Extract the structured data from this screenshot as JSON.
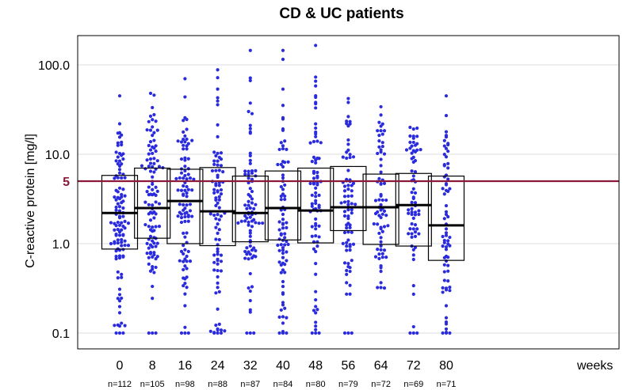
{
  "chart_data": {
    "type": "box",
    "title": "CD & UC patients",
    "ylabel": "C-reactive protein [mg/l]",
    "xlabel_unit": "weeks",
    "yscale": "log",
    "ylim": [
      0.1,
      200
    ],
    "yticks": [
      "0.1",
      "1.0",
      "10.0",
      "100.0"
    ],
    "grid": "horizontal",
    "reference_line": {
      "value": 5,
      "label": "5",
      "color": "#8b1a3a"
    },
    "point_color": "#2b2bde",
    "categories": [
      "0",
      "8",
      "16",
      "24",
      "32",
      "40",
      "48",
      "56",
      "64",
      "72",
      "80"
    ],
    "n_labels": [
      "n=112",
      "n=105",
      "n=98",
      "n=88",
      "n=87",
      "n=84",
      "n=80",
      "n=79",
      "n=72",
      "n=69",
      "n=71"
    ],
    "boxes": [
      {
        "q1": 0.87,
        "median": 2.2,
        "q3": 5.8,
        "ymin": 0.1,
        "ymax": 45
      },
      {
        "q1": 1.15,
        "median": 2.5,
        "q3": 7.0,
        "ymin": 0.1,
        "ymax": 48
      },
      {
        "q1": 1.0,
        "median": 3.0,
        "q3": 6.8,
        "ymin": 0.1,
        "ymax": 70
      },
      {
        "q1": 0.95,
        "median": 2.3,
        "q3": 7.1,
        "ymin": 0.1,
        "ymax": 88
      },
      {
        "q1": 1.05,
        "median": 2.2,
        "q3": 5.7,
        "ymin": 0.1,
        "ymax": 145
      },
      {
        "q1": 1.1,
        "median": 2.5,
        "q3": 6.5,
        "ymin": 0.1,
        "ymax": 145
      },
      {
        "q1": 1.02,
        "median": 2.35,
        "q3": 7.0,
        "ymin": 0.1,
        "ymax": 165
      },
      {
        "q1": 1.4,
        "median": 2.55,
        "q3": 7.3,
        "ymin": 0.1,
        "ymax": 42
      },
      {
        "q1": 0.98,
        "median": 2.55,
        "q3": 6.0,
        "ymin": 0.23,
        "ymax": 34
      },
      {
        "q1": 0.94,
        "median": 2.7,
        "q3": 6.1,
        "ymin": 0.1,
        "ymax": 20
      },
      {
        "q1": 0.65,
        "median": 1.6,
        "q3": 5.7,
        "ymin": 0.1,
        "ymax": 45
      }
    ]
  }
}
